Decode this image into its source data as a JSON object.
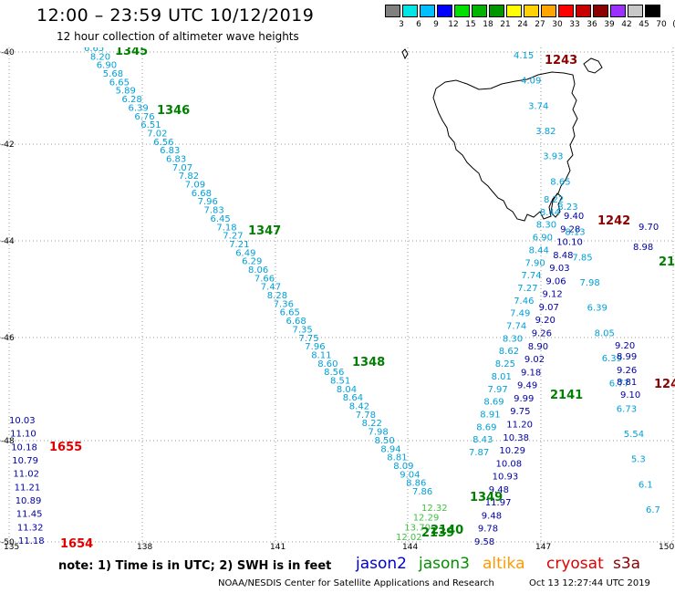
{
  "header": {
    "title": "12:00 – 23:59 UTC 10/12/2019",
    "subtitle": "12 hour collection of altimeter wave heights"
  },
  "color_scale": {
    "colors": [
      "#808080",
      "#00e5e5",
      "#00bfff",
      "#0000ff",
      "#00e000",
      "#00b400",
      "#009600",
      "#ffff00",
      "#ffd200",
      "#ffa500",
      "#ff0000",
      "#c80000",
      "#8b0000",
      "#9b30ff",
      "#c8c8c8",
      "#000000"
    ],
    "labels": [
      "3",
      "6",
      "9",
      "12",
      "15",
      "18",
      "21",
      "24",
      "27",
      "30",
      "33",
      "36",
      "39",
      "42",
      "45",
      "70",
      "(ft)"
    ]
  },
  "map": {
    "lat_labels": [
      "-40",
      "-42",
      "-44",
      "-46",
      "-48",
      "-50"
    ],
    "lon_labels": [
      "135",
      "138",
      "141",
      "144",
      "147",
      "150"
    ],
    "tracks": [
      {
        "id": "1345",
        "satellite": "jason3",
        "color": "#00a0d8",
        "points": [
          "6.65",
          "8.20",
          "6.90",
          "5.68",
          "6.65",
          "5.89",
          "6.28",
          "6.39",
          "6.76",
          "6.51",
          "7.02",
          "6.56",
          "6.83",
          "6.83",
          "7.07",
          "7.82",
          "7.09",
          "6.68",
          "7.96",
          "7.83",
          "6.45",
          "7.18",
          "7.27",
          "7.21",
          "6.49",
          "6.29",
          "8.06",
          "7.66",
          "7.47",
          "8.28",
          "7.36",
          "6.65",
          "6.68",
          "7.35",
          "7.75",
          "7.96",
          "8.11",
          "8.60",
          "8.56",
          "8.51",
          "8.04",
          "8.64",
          "8.42",
          "7.78",
          "8.22",
          "7.98",
          "8.50",
          "8.94",
          "8.81",
          "8.09",
          "9.04",
          "8.86",
          "7.86"
        ]
      },
      {
        "id": "2141",
        "satellite": "jason3",
        "color": "#00a0d8",
        "points": [
          "8.22",
          "8.44",
          "8.30",
          "6.90",
          "8.44",
          "7.90",
          "7.74",
          "7.27",
          "7.46",
          "7.49",
          "7.74",
          "8.30",
          "8.62",
          "8.25",
          "8.01",
          "7.97",
          "8.69",
          "8.91",
          "8.69",
          "8.43",
          "7.87"
        ]
      },
      {
        "id": "2140",
        "satellite": "jason2",
        "color": "#0000a0",
        "points": [
          "9.40",
          "9.28",
          "10.10",
          "8.48",
          "9.03",
          "9.06",
          "9.12",
          "9.07",
          "9.20",
          "9.26",
          "8.90",
          "9.02",
          "9.18",
          "9.49",
          "9.99",
          "9.75",
          "11.20",
          "10.38",
          "10.29",
          "10.08",
          "10.93",
          "9.48",
          "11.97",
          "9.48",
          "9.78",
          "9.58"
        ]
      },
      {
        "id": "1242",
        "satellite": "jason3",
        "color": "#00a0d8",
        "points": [
          "4.15",
          "4.09",
          "3.74",
          "3.82",
          "3.93",
          "8.65",
          "8.23",
          "8.13",
          "7.85",
          "7.98",
          "6.39",
          "8.05",
          "6.39",
          "6.77",
          "6.73",
          "5.54",
          "5.3",
          "6.1",
          "6.7"
        ]
      },
      {
        "id": "1655",
        "satellite": "jason2",
        "color": "#0000a0",
        "points": [
          "10.03",
          "11.10",
          "10.18",
          "10.79",
          "11.02",
          "11.21",
          "10.89",
          "11.45",
          "11.32",
          "11.18"
        ]
      },
      {
        "id": "2139",
        "satellite": "jason3",
        "color": "#40c040",
        "points": [
          "12.32",
          "12.29",
          "13.70",
          "12.02"
        ]
      }
    ],
    "extra_values": [
      "9.70",
      "8.98",
      "8.99",
      "8.81",
      "9.10",
      "9.26",
      "9.20"
    ],
    "pass_labels": [
      {
        "text": "1345",
        "color": "#008000"
      },
      {
        "text": "1346",
        "color": "#008000"
      },
      {
        "text": "1347",
        "color": "#008000"
      },
      {
        "text": "1348",
        "color": "#008000"
      },
      {
        "text": "1349",
        "color": "#008000"
      },
      {
        "text": "2139",
        "color": "#008000"
      },
      {
        "text": "2140",
        "color": "#008000"
      },
      {
        "text": "2141",
        "color": "#008000"
      },
      {
        "text": "1243",
        "color": "#8b0000"
      },
      {
        "text": "1242",
        "color": "#8b0000"
      },
      {
        "text": "124",
        "color": "#8b0000"
      },
      {
        "text": "21",
        "color": "#008000"
      },
      {
        "text": "1655",
        "color": "#e00000"
      },
      {
        "text": "1654",
        "color": "#e00000"
      }
    ]
  },
  "footer": {
    "note": "note: 1) Time is in UTC; 2) SWH is in feet",
    "legend": [
      {
        "name": "jason2",
        "color": "#0000cd"
      },
      {
        "name": "jason3",
        "color": "#009000"
      },
      {
        "name": "altika",
        "color": "#ff9900"
      },
      {
        "name": "cryosat",
        "color": "#e00000"
      },
      {
        "name": "s3a",
        "color": "#8b0000"
      }
    ],
    "credit": "NOAA/NESDIS Center for Satellite Applications and Research",
    "timestamp": "Oct 13 12:27:44 UTC 2019"
  }
}
